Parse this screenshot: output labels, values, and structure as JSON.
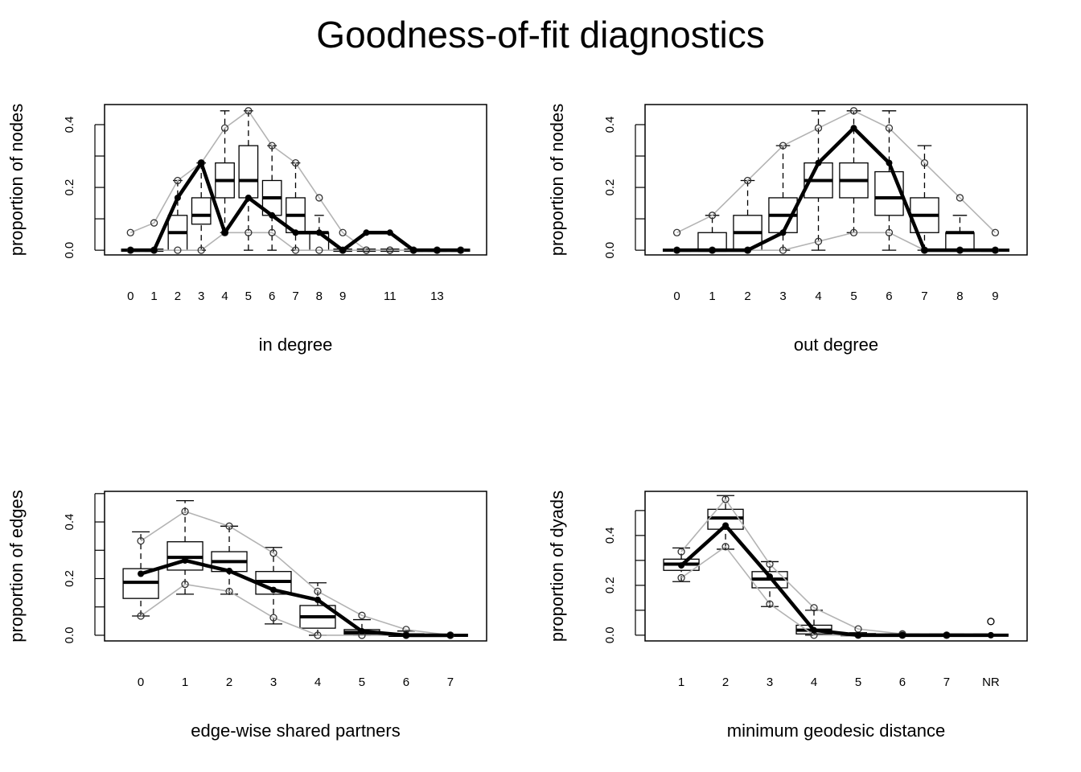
{
  "title": "Goodness-of-fit diagnostics",
  "chart_data": [
    {
      "type": "boxplot",
      "xlabel": "in degree",
      "ylabel": "proportion of nodes",
      "categories": [
        "0",
        "1",
        "2",
        "3",
        "4",
        "5",
        "6",
        "7",
        "8",
        "9",
        null,
        "11",
        null,
        "13",
        null
      ],
      "ylim": [
        -0.015,
        0.464
      ],
      "yticks": [
        {
          "value": 0,
          "label": "0.0"
        },
        {
          "value": 0.2,
          "label": "0.2"
        },
        {
          "value": 0.4,
          "label": "0.4"
        }
      ],
      "minor_yticks": [
        0.1,
        0.3
      ],
      "boxes": {
        "whisker_low": [
          0,
          0,
          0,
          0,
          0.056,
          0,
          0,
          0,
          0,
          0,
          0,
          0,
          0,
          0,
          0
        ],
        "q1": [
          0,
          0,
          0,
          0.083,
          0.167,
          0.167,
          0.111,
          0.056,
          0,
          0,
          0,
          0,
          0,
          0,
          0
        ],
        "median": [
          0,
          0,
          0.056,
          0.111,
          0.222,
          0.222,
          0.167,
          0.111,
          0.056,
          0,
          0,
          0,
          0,
          0,
          0
        ],
        "q3": [
          0,
          0,
          0.111,
          0.167,
          0.278,
          0.333,
          0.222,
          0.167,
          0.056,
          0,
          0,
          0,
          0,
          0,
          0
        ],
        "whisker_high": [
          0,
          0,
          0.222,
          0.278,
          0.444,
          0.444,
          0.333,
          0.278,
          0.111,
          0,
          0,
          0,
          0,
          0,
          0
        ]
      },
      "upper": [
        0.056,
        0.087,
        0.222,
        0.278,
        0.389,
        0.444,
        0.333,
        0.278,
        0.167,
        0.056,
        0,
        0,
        0,
        0,
        0
      ],
      "lower": [
        0,
        0,
        0,
        0,
        0.056,
        0.056,
        0.056,
        0,
        0,
        0,
        0,
        0,
        0,
        0,
        0
      ],
      "observed": [
        0,
        0,
        0.167,
        0.278,
        0.056,
        0.167,
        0.111,
        0.056,
        0.056,
        0,
        0.056,
        0.056,
        0,
        0,
        0
      ],
      "observed_color": "#000000",
      "band_color": "#b3b3b3"
    },
    {
      "type": "boxplot",
      "xlabel": "out degree",
      "ylabel": "proportion of nodes",
      "categories": [
        "0",
        "1",
        "2",
        "3",
        "4",
        "5",
        "6",
        "7",
        "8",
        "9"
      ],
      "ylim": [
        -0.015,
        0.464
      ],
      "yticks": [
        {
          "value": 0,
          "label": "0.0"
        },
        {
          "value": 0.2,
          "label": "0.2"
        },
        {
          "value": 0.4,
          "label": "0.4"
        }
      ],
      "minor_yticks": [
        0.1,
        0.3
      ],
      "boxes": {
        "whisker_low": [
          0,
          0,
          0,
          0,
          0,
          0.056,
          0,
          0,
          0,
          0
        ],
        "q1": [
          0,
          0,
          0,
          0.056,
          0.167,
          0.167,
          0.111,
          0.056,
          0,
          0
        ],
        "median": [
          0,
          0,
          0.056,
          0.111,
          0.222,
          0.222,
          0.167,
          0.111,
          0.056,
          0
        ],
        "q3": [
          0,
          0.056,
          0.111,
          0.167,
          0.278,
          0.278,
          0.25,
          0.167,
          0.056,
          0
        ],
        "whisker_high": [
          0,
          0.111,
          0.222,
          0.333,
          0.444,
          0.444,
          0.444,
          0.333,
          0.111,
          0
        ]
      },
      "upper": [
        0.056,
        0.111,
        0.222,
        0.333,
        0.389,
        0.444,
        0.389,
        0.278,
        0.167,
        0.056
      ],
      "lower": [
        0,
        0,
        0,
        0,
        0.028,
        0.056,
        0.056,
        0,
        0,
        0
      ],
      "observed": [
        0,
        0,
        0,
        0.056,
        0.278,
        0.389,
        0.278,
        0,
        0,
        0
      ],
      "observed_color": "#000000",
      "band_color": "#b3b3b3"
    },
    {
      "type": "boxplot",
      "xlabel": "edge-wise shared partners",
      "ylabel": "proportion of edges",
      "categories": [
        "0",
        "1",
        "2",
        "3",
        "4",
        "5",
        "6",
        "7"
      ],
      "ylim": [
        -0.02,
        0.508
      ],
      "yticks": [
        {
          "value": 0,
          "label": "0.0"
        },
        {
          "value": 0.2,
          "label": "0.2"
        },
        {
          "value": 0.4,
          "label": "0.4"
        }
      ],
      "minor_yticks": [
        0.1,
        0.3,
        0.5
      ],
      "boxes": {
        "whisker_low": [
          0.068,
          0.145,
          0.145,
          0.04,
          0,
          0,
          0,
          0
        ],
        "q1": [
          0.13,
          0.23,
          0.225,
          0.145,
          0.025,
          0.003,
          0,
          0
        ],
        "median": [
          0.187,
          0.275,
          0.26,
          0.19,
          0.065,
          0.01,
          0,
          0
        ],
        "q3": [
          0.235,
          0.33,
          0.295,
          0.225,
          0.105,
          0.02,
          0.005,
          0
        ],
        "whisker_high": [
          0.365,
          0.475,
          0.385,
          0.31,
          0.185,
          0.055,
          0.015,
          0
        ]
      },
      "upper": [
        0.333,
        0.437,
        0.385,
        0.29,
        0.155,
        0.07,
        0.02,
        0
      ],
      "lower": [
        0.068,
        0.18,
        0.155,
        0.062,
        0,
        0,
        0,
        0
      ],
      "observed": [
        0.217,
        0.264,
        0.227,
        0.16,
        0.125,
        0.014,
        0,
        0
      ],
      "observed_color": "#000000",
      "band_color": "#b3b3b3"
    },
    {
      "type": "boxplot",
      "xlabel": "minimum geodesic distance",
      "ylabel": "proportion of dyads",
      "categories": [
        "1",
        "2",
        "3",
        "4",
        "5",
        "6",
        "7",
        "NR"
      ],
      "ylim": [
        -0.023,
        0.577
      ],
      "yticks": [
        {
          "value": 0,
          "label": "0.0"
        },
        {
          "value": 0.2,
          "label": "0.2"
        },
        {
          "value": 0.4,
          "label": "0.4"
        }
      ],
      "minor_yticks": [
        0.1,
        0.3,
        0.5
      ],
      "boxes": {
        "whisker_low": [
          0.215,
          0.345,
          0.115,
          0,
          0,
          0,
          0,
          0
        ],
        "q1": [
          0.26,
          0.425,
          0.19,
          0.005,
          0,
          0,
          0,
          0
        ],
        "median": [
          0.285,
          0.47,
          0.225,
          0.02,
          0.002,
          0,
          0,
          0
        ],
        "q3": [
          0.305,
          0.505,
          0.255,
          0.04,
          0.005,
          0,
          0,
          0
        ],
        "whisker_high": [
          0.35,
          0.56,
          0.295,
          0.1,
          0.01,
          0,
          0,
          0
        ]
      },
      "outliers": [
        [],
        [],
        [],
        [],
        [],
        [],
        [],
        [
          0.055
        ]
      ],
      "upper": [
        0.335,
        0.545,
        0.285,
        0.11,
        0.025,
        0.005,
        0,
        null
      ],
      "lower": [
        0.23,
        0.355,
        0.125,
        0,
        0,
        0,
        0,
        null
      ],
      "observed": [
        0.28,
        0.44,
        0.235,
        0.02,
        0,
        0,
        0,
        0
      ],
      "observed_color": "#000000",
      "band_color": "#b3b3b3"
    }
  ]
}
